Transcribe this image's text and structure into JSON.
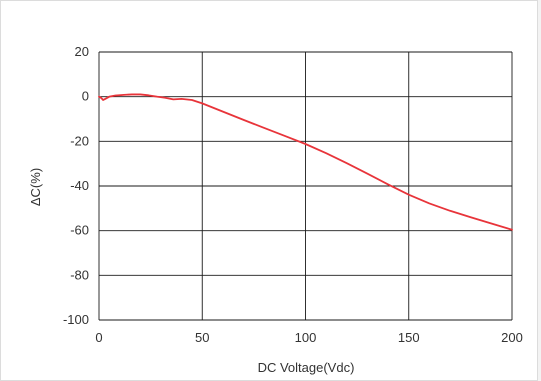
{
  "chart_data": {
    "type": "line",
    "title": "",
    "xlabel": "DC Voltage(Vdc)",
    "ylabel": "ΔC(%)",
    "xlim": [
      0,
      200
    ],
    "ylim": [
      -100,
      20
    ],
    "xticks": [
      0,
      50,
      100,
      150,
      200
    ],
    "yticks": [
      20,
      0,
      -20,
      -40,
      -60,
      -80,
      -100
    ],
    "grid": true,
    "legend": "none",
    "series": [
      {
        "color": "#e8343a",
        "x": [
          0,
          1,
          2,
          3,
          5,
          8,
          12,
          16,
          20,
          24,
          28,
          32,
          36,
          40,
          45,
          50,
          60,
          70,
          80,
          90,
          100,
          110,
          120,
          130,
          140,
          150,
          160,
          170,
          180,
          190,
          200
        ],
        "y": [
          0,
          -0.5,
          -1.5,
          -1,
          0,
          0.5,
          0.8,
          1,
          1,
          0.6,
          0,
          -0.5,
          -1.2,
          -1,
          -1.5,
          -3,
          -6.7,
          -10.4,
          -14,
          -17.6,
          -21.2,
          -25.3,
          -29.8,
          -34.5,
          -39.3,
          -43.9,
          -47.8,
          -51.1,
          -54,
          -56.8,
          -59.6
        ]
      }
    ]
  }
}
